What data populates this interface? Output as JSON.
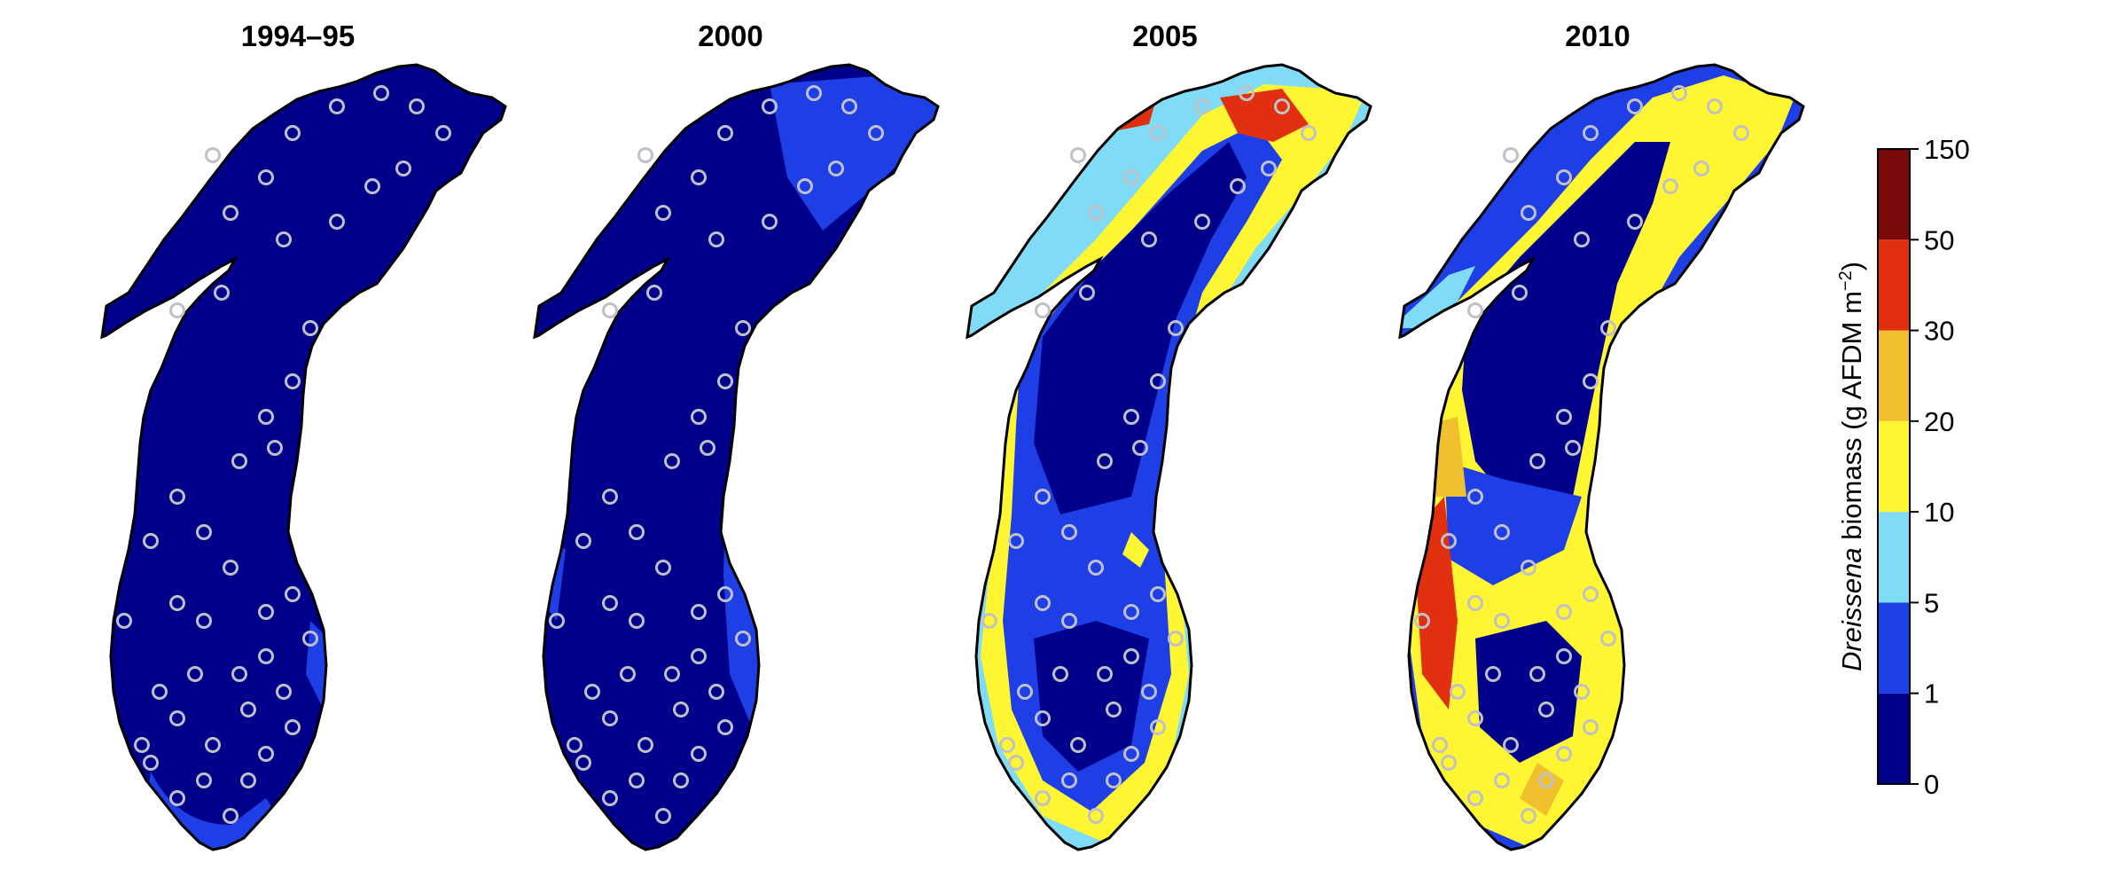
{
  "panels": [
    {
      "title": "1994–95"
    },
    {
      "title": "2000"
    },
    {
      "title": "2005"
    },
    {
      "title": "2010"
    }
  ],
  "legend": {
    "title_italic": "Dreissena",
    "title_rest": " biomass (g AFDM m",
    "title_sup": "−2",
    "title_close": ")",
    "bins": [
      {
        "from": "0",
        "to": "1",
        "color": "#00008B"
      },
      {
        "from": "1",
        "to": "5",
        "color": "#1F3FE6"
      },
      {
        "from": "5",
        "to": "10",
        "color": "#80DCF6"
      },
      {
        "from": "10",
        "to": "20",
        "color": "#FFF633"
      },
      {
        "from": "20",
        "to": "30",
        "color": "#F0C030"
      },
      {
        "from": "30",
        "to": "50",
        "color": "#E03010"
      },
      {
        "from": "50",
        "to": "150",
        "color": "#7A0A0A"
      }
    ],
    "ticks": [
      "0",
      "1",
      "5",
      "10",
      "20",
      "30",
      "50",
      "150"
    ]
  },
  "colors": {
    "coastline": "#000000",
    "station_ring": "#C0C0C8"
  }
}
